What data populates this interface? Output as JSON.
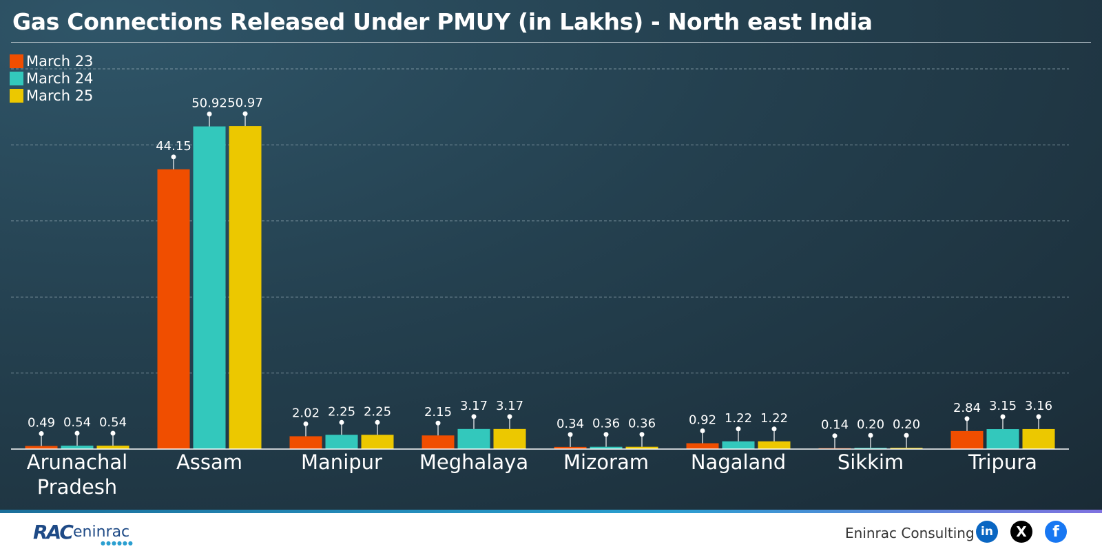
{
  "chart_data": {
    "type": "bar",
    "title": "Gas Connections Released Under PMUY (in Lakhs) - North east India",
    "categories": [
      "Arunachal Pradesh",
      "Assam",
      "Manipur",
      "Meghalaya",
      "Mizoram",
      "Nagaland",
      "Sikkim",
      "Tripura"
    ],
    "series": [
      {
        "name": "March 23",
        "color": "#f04e00",
        "values": [
          0.49,
          44.15,
          2.02,
          2.15,
          0.34,
          0.92,
          0.14,
          2.84
        ]
      },
      {
        "name": "March 24",
        "color": "#33c8bc",
        "values": [
          0.54,
          50.92,
          2.25,
          3.17,
          0.36,
          1.22,
          0.2,
          3.15
        ]
      },
      {
        "name": "March 25",
        "color": "#ecc800",
        "values": [
          0.54,
          50.97,
          2.25,
          3.17,
          0.36,
          1.22,
          0.2,
          3.16
        ]
      }
    ],
    "value_labels": [
      [
        "0.49",
        "44.15",
        "2.02",
        "2.15",
        "0.34",
        "0.92",
        "0.14",
        "2.84"
      ],
      [
        "0.54",
        "50.92",
        "2.25",
        "3.17",
        "0.36",
        "1.22",
        "0.20",
        "3.15"
      ],
      [
        "0.54",
        "50.97",
        "2.25",
        "3.17",
        "0.36",
        "1.22",
        "0.20",
        "3.16"
      ]
    ],
    "ylim": [
      0,
      60
    ],
    "gridlines": [
      12,
      24,
      36,
      48,
      60
    ],
    "grid": true,
    "legend": "top-left"
  },
  "footer": {
    "brand": "Eninrac Consulting",
    "logo_text_a": "RAC",
    "logo_text_b": "eninrac",
    "social": [
      {
        "icon": "linkedin-icon",
        "glyph": "in"
      },
      {
        "icon": "x-icon",
        "glyph": "X"
      },
      {
        "icon": "facebook-icon",
        "glyph": "f"
      }
    ]
  }
}
